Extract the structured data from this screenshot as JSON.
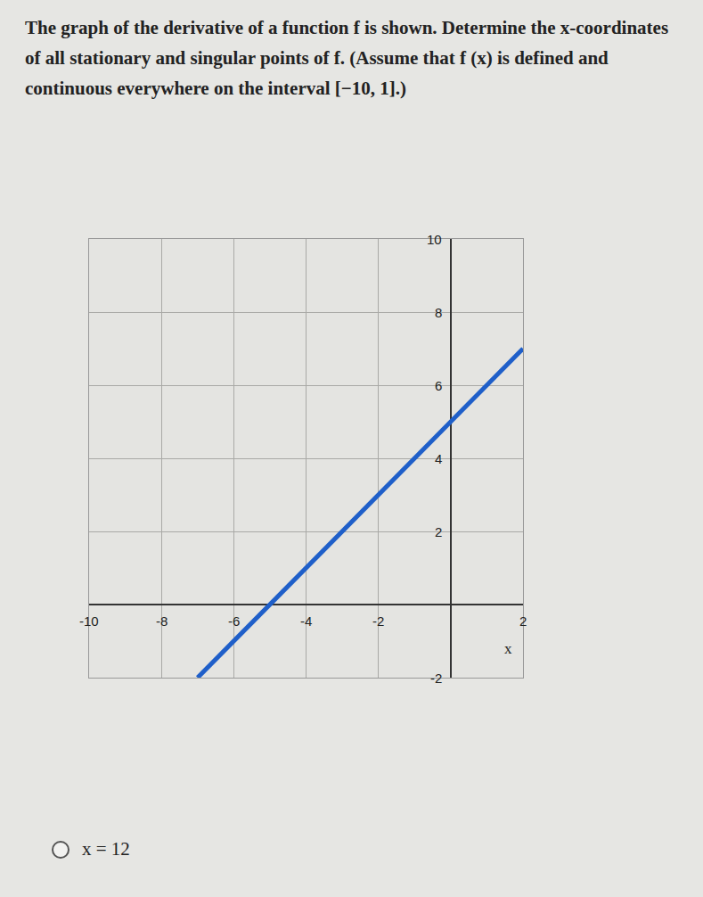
{
  "question": "The graph of the derivative of a function f is shown. Determine the x-coordinates of all stationary and singular points of f. (Assume that f (x) is defined and continuous everywhere on the interval [−10, 1].)",
  "option": "x = 12",
  "chart_data": {
    "type": "line",
    "x_label": "x",
    "x": [
      -7,
      2
    ],
    "values": [
      -2,
      7
    ],
    "color": "#1f5fc9",
    "xlim": [
      -10,
      2
    ],
    "ylim": [
      -2,
      10
    ],
    "xticks": [
      -10,
      -8,
      -6,
      -4,
      -2,
      2
    ],
    "yticks": [
      -2,
      2,
      4,
      6,
      8,
      10
    ],
    "grid": true
  }
}
